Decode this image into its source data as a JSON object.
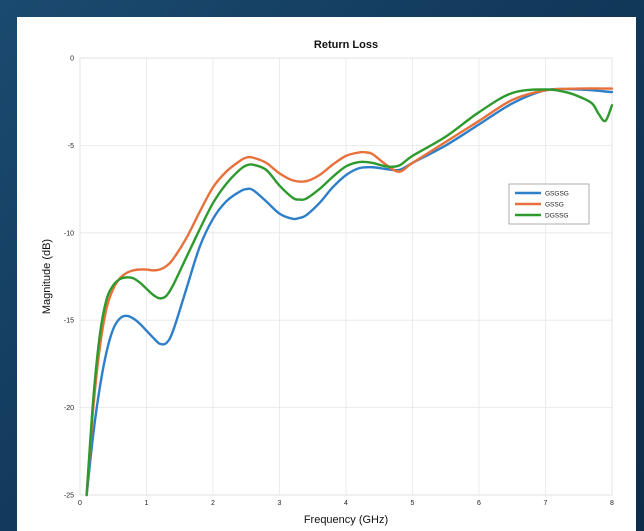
{
  "chart_data": {
    "type": "line",
    "title": "Return Loss",
    "xlabel": "Frequency (GHz)",
    "ylabel": "Magnitude (dB)",
    "xlim": [
      0,
      8
    ],
    "ylim": [
      -25,
      0
    ],
    "xticks": [
      "0",
      "1",
      "2",
      "3",
      "4",
      "5",
      "6",
      "7",
      "8"
    ],
    "yticks": [
      "0",
      "-5",
      "-10",
      "-15",
      "-20",
      "-25"
    ],
    "grid": true,
    "legend_position": "right",
    "series": [
      {
        "name": "GSGSG",
        "color": "#2e7fc9",
        "x": [
          0.1,
          0.2,
          0.3,
          0.4,
          0.5,
          0.6,
          0.7,
          0.8,
          0.9,
          1.0,
          1.1,
          1.2,
          1.3,
          1.4,
          1.6,
          1.8,
          2.0,
          2.2,
          2.4,
          2.5,
          2.6,
          2.8,
          3.0,
          3.2,
          3.3,
          3.4,
          3.6,
          3.8,
          4.0,
          4.2,
          4.4,
          4.6,
          4.8,
          5.0,
          5.5,
          6.0,
          6.5,
          7.0,
          7.5,
          8.0
        ],
        "values": [
          -25.0,
          -21.5,
          -18.8,
          -16.8,
          -15.5,
          -14.9,
          -14.75,
          -14.9,
          -15.2,
          -15.6,
          -16.0,
          -16.35,
          -16.3,
          -15.6,
          -13.2,
          -10.8,
          -9.2,
          -8.2,
          -7.65,
          -7.5,
          -7.55,
          -8.2,
          -8.9,
          -9.2,
          -9.15,
          -9.0,
          -8.3,
          -7.4,
          -6.7,
          -6.3,
          -6.25,
          -6.35,
          -6.4,
          -6.0,
          -5.0,
          -3.8,
          -2.6,
          -1.85,
          -1.8,
          -1.95
        ]
      },
      {
        "name": "GSSG",
        "color": "#e8703a",
        "x": [
          0.1,
          0.2,
          0.3,
          0.4,
          0.5,
          0.6,
          0.7,
          0.8,
          0.9,
          1.0,
          1.1,
          1.2,
          1.3,
          1.4,
          1.6,
          1.8,
          2.0,
          2.2,
          2.4,
          2.5,
          2.6,
          2.8,
          3.0,
          3.2,
          3.4,
          3.6,
          3.8,
          4.0,
          4.2,
          4.3,
          4.4,
          4.6,
          4.8,
          5.0,
          5.5,
          6.0,
          6.5,
          7.0,
          7.5,
          8.0
        ],
        "values": [
          -25.0,
          -20.0,
          -16.5,
          -14.3,
          -13.2,
          -12.6,
          -12.3,
          -12.15,
          -12.1,
          -12.1,
          -12.15,
          -12.1,
          -11.9,
          -11.5,
          -10.3,
          -8.8,
          -7.4,
          -6.5,
          -5.9,
          -5.7,
          -5.7,
          -6.0,
          -6.6,
          -7.0,
          -7.05,
          -6.7,
          -6.1,
          -5.6,
          -5.4,
          -5.4,
          -5.5,
          -6.1,
          -6.5,
          -6.0,
          -4.8,
          -3.6,
          -2.4,
          -1.85,
          -1.75,
          -1.75
        ]
      },
      {
        "name": "DGSSG",
        "color": "#2e9a2e",
        "x": [
          0.1,
          0.2,
          0.3,
          0.4,
          0.5,
          0.6,
          0.7,
          0.8,
          0.9,
          1.0,
          1.1,
          1.2,
          1.3,
          1.4,
          1.6,
          1.8,
          2.0,
          2.2,
          2.4,
          2.5,
          2.6,
          2.8,
          3.0,
          3.2,
          3.3,
          3.4,
          3.6,
          3.8,
          4.0,
          4.2,
          4.4,
          4.6,
          4.8,
          5.0,
          5.5,
          6.0,
          6.5,
          7.0,
          7.3,
          7.5,
          7.7,
          7.8,
          7.9,
          8.0
        ],
        "values": [
          -25.0,
          -19.5,
          -15.8,
          -13.8,
          -13.0,
          -12.65,
          -12.55,
          -12.6,
          -12.85,
          -13.2,
          -13.55,
          -13.75,
          -13.6,
          -13.0,
          -11.4,
          -9.8,
          -8.3,
          -7.2,
          -6.4,
          -6.15,
          -6.1,
          -6.4,
          -7.3,
          -8.0,
          -8.1,
          -8.05,
          -7.5,
          -6.8,
          -6.2,
          -5.95,
          -6.0,
          -6.2,
          -6.15,
          -5.6,
          -4.5,
          -3.1,
          -2.0,
          -1.8,
          -1.95,
          -2.2,
          -2.6,
          -3.2,
          -3.6,
          -2.7
        ]
      }
    ]
  }
}
